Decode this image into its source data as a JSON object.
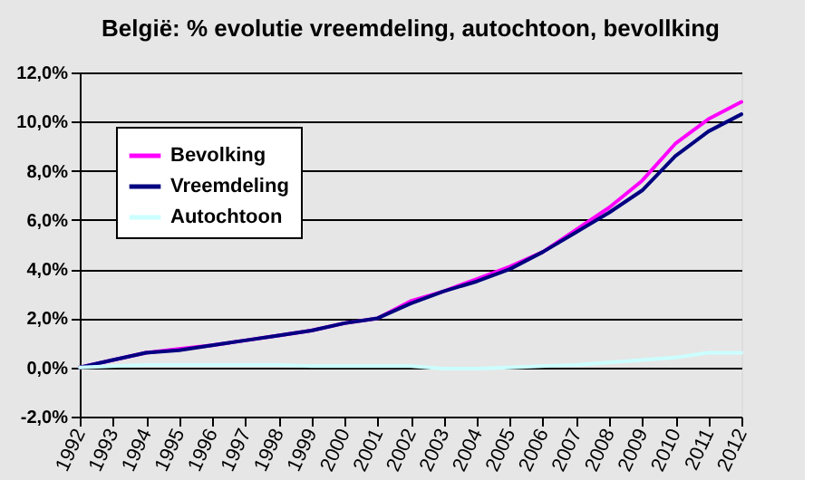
{
  "chart_data": {
    "type": "line",
    "title": "België: % evolutie vreemdeling, autochtoon, bevollking",
    "categories": [
      "1992",
      "1993",
      "1994",
      "1995",
      "1996",
      "1997",
      "1998",
      "1999",
      "2000",
      "2001",
      "2002",
      "2003",
      "2004",
      "2005",
      "2006",
      "2007",
      "2008",
      "2009",
      "2010",
      "2011",
      "2012"
    ],
    "series": [
      {
        "name": "Bevolking",
        "color": "#ff00ff",
        "values": [
          0,
          0.3,
          0.6,
          0.75,
          0.9,
          1.1,
          1.3,
          1.5,
          1.8,
          2.0,
          2.7,
          3.1,
          3.6,
          4.1,
          4.7,
          5.6,
          6.5,
          7.6,
          9.1,
          10.1,
          10.8
        ]
      },
      {
        "name": "Vreemdeling",
        "color": "#000080",
        "values": [
          0,
          0.3,
          0.6,
          0.7,
          0.9,
          1.1,
          1.3,
          1.5,
          1.8,
          2.0,
          2.6,
          3.1,
          3.5,
          4.0,
          4.7,
          5.5,
          6.3,
          7.2,
          8.6,
          9.6,
          10.3
        ]
      },
      {
        "name": "Autochtoon",
        "color": "#ccffff",
        "values": [
          0,
          0.05,
          0.1,
          0.1,
          0.1,
          0.1,
          0.1,
          0.05,
          0.05,
          0.05,
          0.05,
          -0.05,
          -0.05,
          0.0,
          0.05,
          0.1,
          0.2,
          0.3,
          0.4,
          0.6,
          0.6
        ]
      }
    ],
    "ylim": [
      -2,
      12
    ],
    "yticks": [
      {
        "value": -2,
        "label": "-2,0%"
      },
      {
        "value": 0,
        "label": "0,0%"
      },
      {
        "value": 2,
        "label": "2,0%"
      },
      {
        "value": 4,
        "label": "4,0%"
      },
      {
        "value": 6,
        "label": "6,0%"
      },
      {
        "value": 8,
        "label": "8,0%"
      },
      {
        "value": 10,
        "label": "10,0%"
      },
      {
        "value": 12,
        "label": "12,0%"
      }
    ],
    "grid": "y",
    "legend": "top left",
    "marker": "none",
    "line_style": "solid"
  }
}
